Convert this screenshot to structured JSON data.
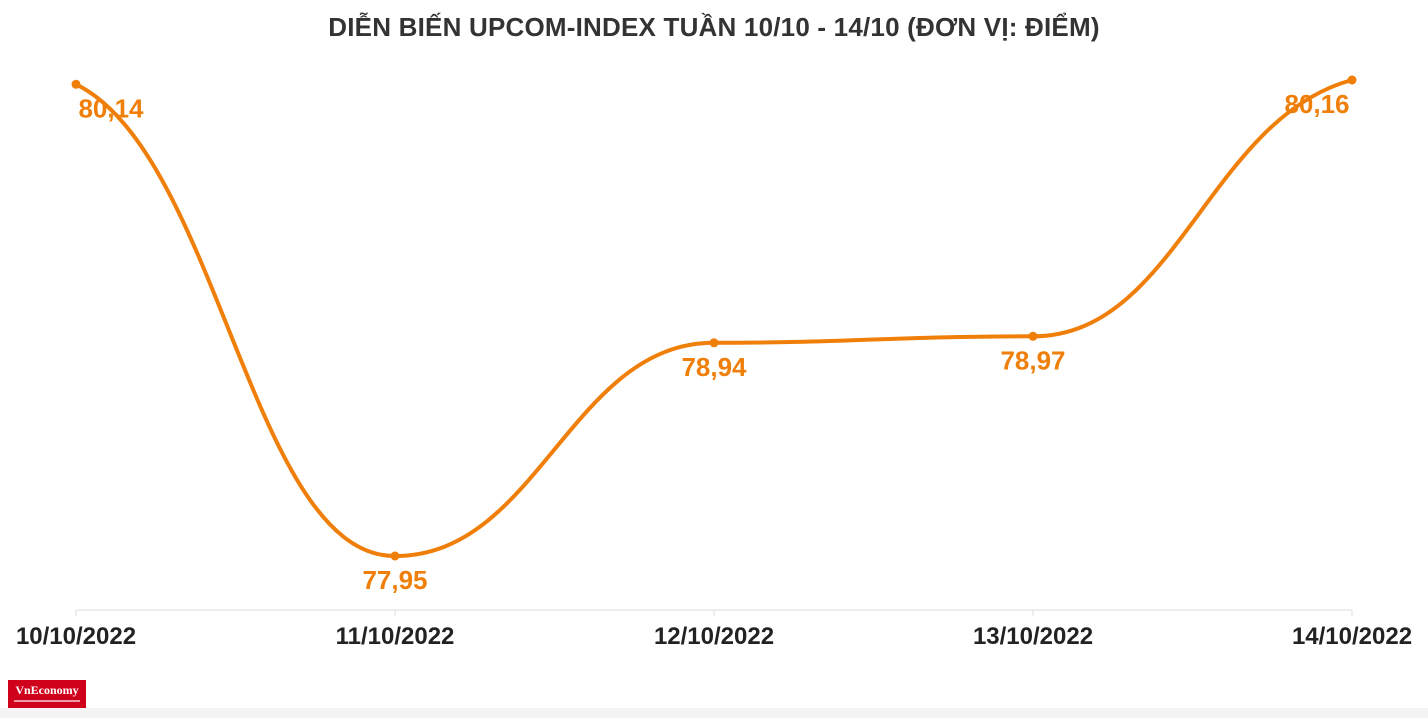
{
  "chart_data": {
    "type": "line",
    "title": "DIỄN BIẾN UPCOM-INDEX TUẦN 10/10 - 14/10 (ĐƠN VỊ: ĐIỂM)",
    "categories": [
      "10/10/2022",
      "11/10/2022",
      "12/10/2022",
      "13/10/2022",
      "14/10/2022"
    ],
    "values": [
      80.14,
      77.95,
      78.94,
      78.97,
      80.16
    ],
    "value_labels": [
      "80,14",
      "77,95",
      "78,94",
      "78,97",
      "80,16"
    ],
    "ylim": [
      77.95,
      80.16
    ],
    "grid": false,
    "smooth": true,
    "colors": {
      "line": "#f07f0a",
      "label": "#f07f0a",
      "axis": "#dddddd",
      "tick_label": "#222222",
      "title": "#333333"
    }
  },
  "logo": {
    "text": "VnEconomy",
    "color": "#d0021b"
  }
}
